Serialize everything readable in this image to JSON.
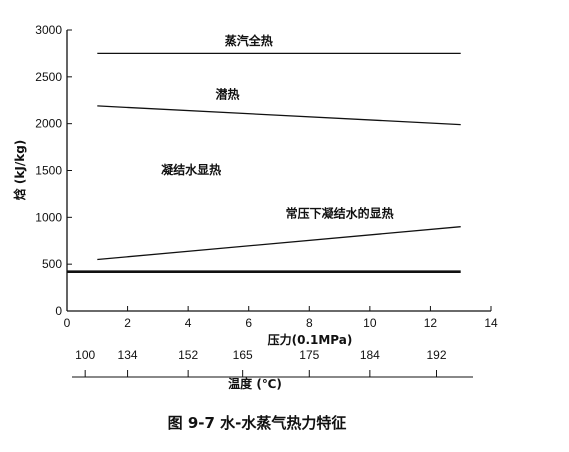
{
  "chart_data": {
    "type": "line",
    "title": "",
    "caption": "图 9-7   水-水蒸气热力特征",
    "xlabel": "压力(0.1MPa)",
    "ylabel": "焓 (kJ/kg)",
    "xlim": [
      0,
      14
    ],
    "ylim": [
      0,
      3000
    ],
    "xticks": [
      0,
      2,
      4,
      6,
      8,
      10,
      12,
      14
    ],
    "yticks": [
      0,
      500,
      1000,
      1500,
      2000,
      2500,
      3000
    ],
    "grid": false,
    "series": [
      {
        "name": "蒸汽全热",
        "x": [
          1,
          13
        ],
        "y": [
          2750,
          2750
        ],
        "width": 1.3
      },
      {
        "name": "潜热",
        "x": [
          1,
          13
        ],
        "y": [
          2190,
          1990
        ],
        "width": 1.3
      },
      {
        "name": "常压下凝结水的显热",
        "x": [
          1,
          13
        ],
        "y": [
          550,
          900
        ],
        "width": 1.3
      },
      {
        "name": "",
        "x": [
          0,
          13
        ],
        "y": [
          420,
          420
        ],
        "width": 2.6
      }
    ],
    "annotations": [
      {
        "text": "蒸汽全热",
        "x": 6.0,
        "y": 2840
      },
      {
        "text": "潜热",
        "x": 5.3,
        "y": 2270
      },
      {
        "text": "凝结水显热",
        "x": 4.1,
        "y": 1460
      },
      {
        "text": "常压下凝结水的显热",
        "x": 9.0,
        "y": 1000
      }
    ],
    "secondary_axis": {
      "label": "温度 (℃)",
      "at_pressure": [
        0.6,
        2.0,
        4.0,
        5.8,
        8.0,
        10.0,
        12.2
      ],
      "values": [
        "100",
        "134",
        "152",
        "165",
        "175",
        "184",
        "192"
      ]
    }
  }
}
